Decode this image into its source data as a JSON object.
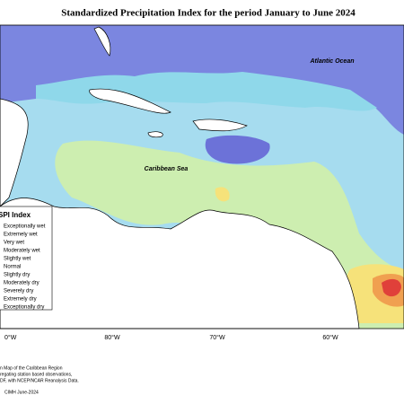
{
  "title": "Standardized Precipitation Index for the period January to June 2024",
  "labels": {
    "ocean": "Atlantic Ocean",
    "sea": "Caribbean Sea"
  },
  "legend": {
    "title": "SPI Index",
    "items": [
      "Exceptionally wet",
      "Extremely wet",
      "Very wet",
      "Moderately wet",
      "Slightly wet",
      "Normal",
      "Slightly dry",
      "Moderately dry",
      "Severely dry",
      "Extremely dry",
      "Exceptionally dry"
    ]
  },
  "longitudes": [
    "0°W",
    "80°W",
    "70°W",
    "60°W"
  ],
  "notes": [
    "n Map of the Caribbean Region",
    "regating station based observations,",
    "DF, with NCEP/NCAR Reanalysis Data."
  ],
  "credit": "CIMH June-2024"
}
